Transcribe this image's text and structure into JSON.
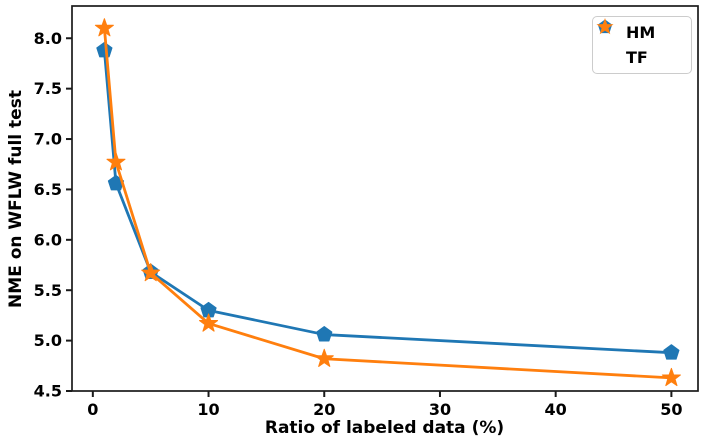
{
  "chart_data": {
    "type": "line",
    "title": "",
    "xlabel": "Ratio of labeled data (%)",
    "ylabel": "NME on WFLW full test",
    "x": [
      1,
      2,
      5,
      10,
      20,
      50
    ],
    "series": [
      {
        "name": "HM",
        "color": "#1f77b4",
        "marker": "pentagon",
        "values": [
          7.88,
          6.56,
          5.68,
          5.3,
          5.06,
          4.88
        ]
      },
      {
        "name": "TF",
        "color": "#ff7f0e",
        "marker": "star",
        "values": [
          8.1,
          6.77,
          5.67,
          5.17,
          4.82,
          4.63
        ]
      }
    ],
    "xlim": [
      -1.8,
      52.3
    ],
    "ylim": [
      4.5,
      8.32
    ],
    "xticks": [
      0,
      10,
      20,
      30,
      40,
      50
    ],
    "yticks": [
      4.5,
      5.0,
      5.5,
      6.0,
      6.5,
      7.0,
      7.5,
      8.0
    ],
    "ytick_decimals": 1,
    "grid": false,
    "legend_position": "upper right",
    "styles": {
      "spine_color": "#1a1a1a",
      "tick_color": "#1a1a1a",
      "tick_label_color": "#000000",
      "background": "#ffffff",
      "legend_border": "#cccccc",
      "line_width": 2.8
    }
  }
}
